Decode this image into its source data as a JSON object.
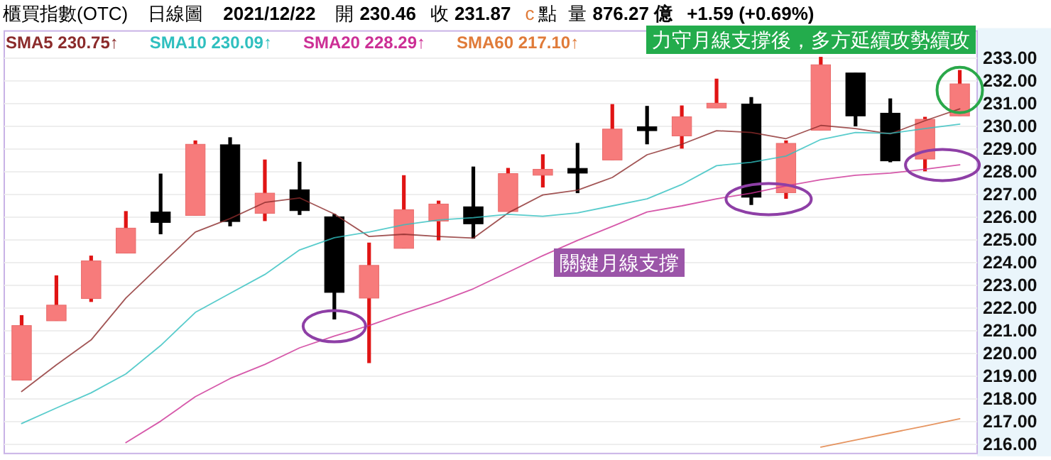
{
  "chart_data": {
    "type": "candlestick",
    "title": "櫃買指數(OTC)",
    "subtitle": "日線圖",
    "categories": [
      null,
      null,
      null,
      null,
      null,
      null,
      null,
      null,
      null,
      null,
      null,
      null,
      null,
      null,
      null,
      null,
      null,
      null,
      null,
      null,
      null,
      null,
      null,
      null,
      null,
      null,
      null,
      null
    ],
    "ohlc": [
      [
        218.83,
        221.69,
        218.83,
        221.23
      ],
      [
        221.44,
        223.44,
        221.44,
        222.13
      ],
      [
        222.42,
        224.31,
        222.27,
        224.08
      ],
      [
        224.42,
        226.27,
        224.42,
        225.52
      ],
      [
        226.23,
        227.92,
        225.25,
        225.77
      ],
      [
        226.08,
        229.38,
        226.08,
        229.21
      ],
      [
        229.19,
        229.52,
        225.6,
        225.81
      ],
      [
        226.17,
        228.54,
        225.83,
        227.06
      ],
      [
        227.21,
        228.44,
        226.1,
        226.29
      ],
      [
        226.02,
        226.14,
        221.5,
        222.69
      ],
      [
        222.44,
        224.88,
        219.58,
        223.88
      ],
      [
        224.63,
        227.85,
        224.63,
        226.33
      ],
      [
        225.83,
        226.73,
        224.98,
        226.58
      ],
      [
        226.46,
        228.23,
        225.06,
        225.71
      ],
      [
        226.25,
        228.17,
        226.25,
        227.92
      ],
      [
        227.85,
        228.77,
        227.31,
        228.11
      ],
      [
        228.15,
        229.27,
        227.06,
        227.94
      ],
      [
        228.52,
        230.98,
        228.52,
        229.88
      ],
      [
        229.98,
        230.9,
        229.21,
        229.81
      ],
      [
        229.58,
        230.92,
        229.02,
        230.42
      ],
      [
        230.81,
        232.1,
        230.81,
        231.02
      ],
      [
        230.98,
        231.29,
        226.54,
        226.88
      ],
      [
        227.08,
        229.38,
        226.81,
        229.25
      ],
      [
        229.83,
        233.06,
        229.83,
        232.71
      ],
      [
        232.35,
        232.35,
        230.0,
        230.46
      ],
      [
        230.58,
        231.23,
        228.42,
        228.48
      ],
      [
        228.56,
        230.42,
        228.02,
        230.31
      ],
      [
        230.46,
        232.48,
        230.46,
        231.87
      ]
    ],
    "series": [
      {
        "type": "line",
        "name": "SMA5 230.75↑",
        "color": "#8b2b2b",
        "values": [
          218.33,
          219.5,
          220.6,
          222.44,
          223.9,
          225.35,
          225.94,
          226.65,
          226.85,
          226.14,
          225.15,
          225.25,
          225.15,
          225.08,
          226.19,
          226.98,
          227.19,
          227.75,
          228.75,
          229.21,
          229.81,
          229.73,
          229.46,
          230.04,
          229.9,
          229.67,
          230.25,
          230.77
        ]
      },
      {
        "type": "line",
        "name": "SMA10 230.09↑",
        "color": "#2fbfbf",
        "values": [
          216.92,
          217.6,
          218.27,
          219.1,
          220.35,
          221.81,
          222.65,
          223.48,
          224.56,
          225.1,
          225.35,
          225.67,
          225.88,
          225.98,
          226.13,
          226.04,
          226.19,
          226.5,
          226.81,
          227.44,
          228.27,
          228.42,
          228.69,
          229.42,
          229.73,
          229.69,
          229.9,
          230.1
        ]
      },
      {
        "type": "line",
        "name": "SMA20 228.29↑",
        "color": "#cc2f95",
        "values": [
          null,
          null,
          null,
          216.08,
          217.02,
          218.1,
          218.9,
          219.52,
          220.25,
          220.77,
          221.23,
          221.77,
          222.27,
          222.85,
          223.58,
          224.31,
          224.98,
          225.6,
          226.23,
          226.5,
          226.81,
          227.06,
          227.38,
          227.65,
          227.85,
          227.94,
          228.11,
          228.31
        ]
      },
      {
        "type": "line",
        "name": "SMA60 217.10↑",
        "color": "#e07b39",
        "values": [
          null,
          null,
          null,
          null,
          null,
          null,
          null,
          null,
          null,
          null,
          null,
          null,
          null,
          null,
          null,
          null,
          null,
          null,
          null,
          null,
          null,
          null,
          null,
          215.88,
          216.19,
          216.5,
          216.81,
          217.13
        ]
      }
    ],
    "ylim": [
      215.6,
      234.2
    ],
    "yticks": [
      {
        "value": 216,
        "label": "216.00"
      },
      {
        "value": 217,
        "label": "217.00"
      },
      {
        "value": 218,
        "label": "218.00"
      },
      {
        "value": 219,
        "label": "219.00"
      },
      {
        "value": 220,
        "label": "220.00"
      },
      {
        "value": 221,
        "label": "221.00"
      },
      {
        "value": 222,
        "label": "222.00"
      },
      {
        "value": 223,
        "label": "223.00"
      },
      {
        "value": 224,
        "label": "224.00"
      },
      {
        "value": 225,
        "label": "225.00"
      },
      {
        "value": 226,
        "label": "226.00"
      },
      {
        "value": 227,
        "label": "227.00"
      },
      {
        "value": 228,
        "label": "228.00"
      },
      {
        "value": 229,
        "label": "229.00"
      },
      {
        "value": 230,
        "label": "230.00"
      },
      {
        "value": 231,
        "label": "231.00"
      },
      {
        "value": 232,
        "label": "232.00"
      },
      {
        "value": 233,
        "label": "233.00"
      }
    ],
    "grid": "y",
    "legend": "top left",
    "tick_labels": "y",
    "annotations": [
      "2021/12/22",
      "開",
      "230.46",
      "收",
      "231.87",
      "c",
      "點",
      "量",
      "876.27 億",
      "+1.59 (+0.69%)",
      "力守月線支撐後，多方延續攻勢續攻",
      "關鍵月線支撐"
    ]
  }
}
